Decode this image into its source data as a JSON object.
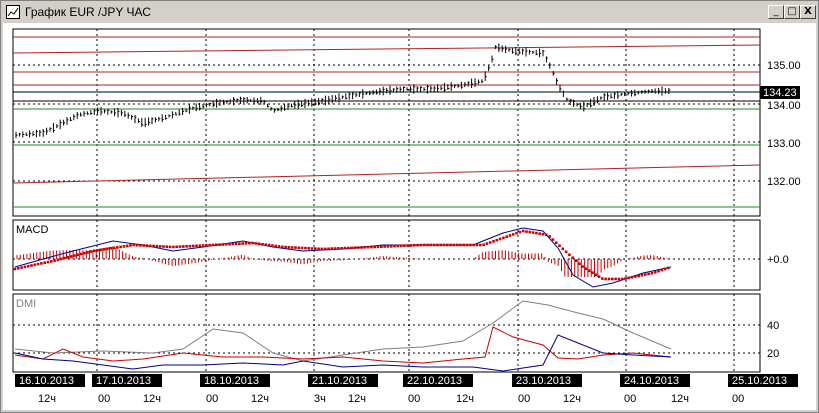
{
  "window": {
    "title": "График EUR /JPY  ЧАС",
    "controls": {
      "minimize": "_",
      "maximize": "□",
      "close": "X"
    }
  },
  "price_panel": {
    "current_price": "134.23",
    "axis_labels": [
      "135.00",
      "134.00",
      "133.00",
      "132.00"
    ]
  },
  "macd_panel": {
    "label": "MACD",
    "axis_labels": [
      "+0.0"
    ]
  },
  "dmi_panel": {
    "label": "DMI",
    "axis_labels": [
      "40",
      "20"
    ]
  },
  "time_axis": {
    "dates": [
      "16.10.2013",
      "17.10.2013",
      "18.10.2013",
      "21.10.2013",
      "22.10.2013",
      "23.10.2013",
      "24.10.2013",
      "25.10.2013"
    ],
    "hours": [
      "12ч",
      "00",
      "12ч",
      "00",
      "12ч",
      "3ч",
      "12ч",
      "00",
      "12ч",
      "00",
      "12ч",
      "00",
      "12ч",
      "00"
    ]
  },
  "colors": {
    "bg": "#ffffff",
    "resistance": "#b22222",
    "support": "#228b22",
    "price": "#000000",
    "macd_line": "#00008b",
    "macd_signal": "#cc0000",
    "dmi_plus": "#cc0000",
    "dmi_minus": "#00008b",
    "adx": "#808080"
  }
}
